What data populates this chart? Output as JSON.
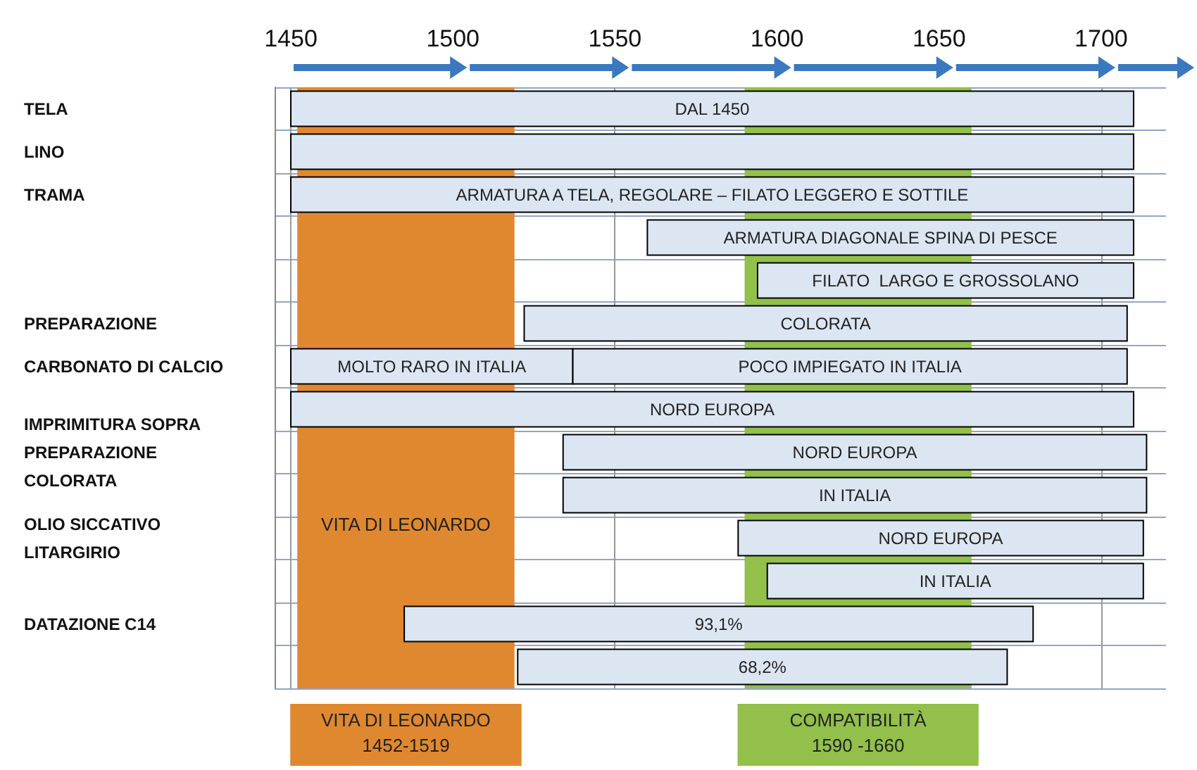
{
  "chart_data": {
    "type": "bar",
    "orientation": "horizontal",
    "categories": [
      "TELA",
      "LINO",
      "TRAMA",
      null,
      null,
      "PREPARAZIONE",
      "CARBONATO DI CALCIO",
      null,
      "IMPRIMITURA SOPRA\nPREPARAZIONE\nCOLORATA",
      null,
      "OLIO SICCATIVO\nLITARGIRIO",
      null,
      "DATAZIONE C14",
      null
    ],
    "series": [
      {
        "name": "DAL 1450",
        "color": "#dce6f2",
        "base": [
          1450,
          null,
          null,
          null,
          null,
          null,
          null,
          null,
          null,
          null,
          null,
          null,
          null,
          null
        ],
        "values": [
          260,
          null,
          null,
          null,
          null,
          null,
          null,
          null,
          null,
          null,
          null,
          null,
          null,
          null
        ]
      },
      {
        "color": "#dce6f2",
        "base": [
          null,
          1450,
          null,
          null,
          null,
          null,
          null,
          null,
          null,
          null,
          null,
          null,
          null,
          null
        ],
        "values": [
          null,
          260,
          null,
          null,
          null,
          null,
          null,
          null,
          null,
          null,
          null,
          null,
          null,
          null
        ]
      },
      {
        "name": "ARMATURA A TELA, REGOLARE – FILATO LEGGERO E SOTTILE",
        "color": "#dce6f2",
        "base": [
          null,
          null,
          1450,
          null,
          null,
          null,
          null,
          null,
          null,
          null,
          null,
          null,
          null,
          null
        ],
        "values": [
          null,
          null,
          260,
          null,
          null,
          null,
          null,
          null,
          null,
          null,
          null,
          null,
          null,
          null
        ]
      },
      {
        "name": "ARMATURA DIAGONALE SPINA DI PESCE",
        "color": "#dce6f2",
        "base": [
          null,
          null,
          null,
          1560,
          null,
          null,
          null,
          null,
          null,
          null,
          null,
          null,
          null,
          null
        ],
        "values": [
          null,
          null,
          null,
          150,
          null,
          null,
          null,
          null,
          null,
          null,
          null,
          null,
          null,
          null
        ]
      },
      {
        "name": "FILATO  LARGO E GROSSOLANO",
        "color": "#dce6f2",
        "base": [
          null,
          null,
          null,
          null,
          1594,
          null,
          null,
          null,
          null,
          null,
          null,
          null,
          null,
          null
        ],
        "values": [
          null,
          null,
          null,
          null,
          116,
          null,
          null,
          null,
          null,
          null,
          null,
          null,
          null,
          null
        ]
      },
      {
        "name": "COLORATA",
        "color": "#dce6f2",
        "base": [
          null,
          null,
          null,
          null,
          null,
          1522,
          null,
          null,
          null,
          null,
          null,
          null,
          null,
          null
        ],
        "values": [
          null,
          null,
          null,
          null,
          null,
          186,
          null,
          null,
          null,
          null,
          null,
          null,
          null,
          null
        ]
      },
      {
        "name": "MOLTO RARO IN ITALIA",
        "color": "#dce6f2",
        "base": [
          null,
          null,
          null,
          null,
          null,
          null,
          1450,
          null,
          null,
          null,
          null,
          null,
          null,
          null
        ],
        "values": [
          null,
          null,
          null,
          null,
          null,
          null,
          87,
          null,
          null,
          null,
          null,
          null,
          null,
          null
        ]
      },
      {
        "name": "POCO IMPIEGATO IN ITALIA",
        "color": "#dce6f2",
        "base": [
          null,
          null,
          null,
          null,
          null,
          null,
          1537,
          null,
          null,
          null,
          null,
          null,
          null,
          null
        ],
        "values": [
          null,
          null,
          null,
          null,
          null,
          null,
          171,
          null,
          null,
          null,
          null,
          null,
          null,
          null
        ]
      },
      {
        "name": "NORD EUROPA",
        "color": "#dce6f2",
        "base": [
          null,
          null,
          null,
          null,
          null,
          null,
          null,
          1450,
          null,
          null,
          null,
          null,
          null,
          null
        ],
        "values": [
          null,
          null,
          null,
          null,
          null,
          null,
          null,
          260,
          null,
          null,
          null,
          null,
          null,
          null
        ]
      },
      {
        "name": "NORD EUROPA",
        "color": "#dce6f2",
        "base": [
          null,
          null,
          null,
          null,
          null,
          null,
          null,
          null,
          1534,
          null,
          null,
          null,
          null,
          null
        ],
        "values": [
          null,
          null,
          null,
          null,
          null,
          null,
          null,
          null,
          180,
          null,
          null,
          null,
          null,
          null
        ]
      },
      {
        "name": "IN ITALIA",
        "color": "#dce6f2",
        "base": [
          null,
          null,
          null,
          null,
          null,
          null,
          null,
          null,
          null,
          1534,
          null,
          null,
          null,
          null
        ],
        "values": [
          null,
          null,
          null,
          null,
          null,
          null,
          null,
          null,
          null,
          180,
          null,
          null,
          null,
          null
        ]
      },
      {
        "name": "NORD EUROPA",
        "color": "#dce6f2",
        "base": [
          null,
          null,
          null,
          null,
          null,
          null,
          null,
          null,
          null,
          null,
          1588,
          null,
          null,
          null
        ],
        "values": [
          null,
          null,
          null,
          null,
          null,
          null,
          null,
          null,
          null,
          null,
          125,
          null,
          null,
          null
        ]
      },
      {
        "name": "IN ITALIA",
        "color": "#dce6f2",
        "base": [
          null,
          null,
          null,
          null,
          null,
          null,
          null,
          null,
          null,
          null,
          null,
          1597,
          null,
          null
        ],
        "values": [
          null,
          null,
          null,
          null,
          null,
          null,
          null,
          null,
          null,
          null,
          null,
          116,
          null,
          null
        ]
      },
      {
        "name": "93,1%",
        "color": "#dce6f2",
        "base": [
          null,
          null,
          null,
          null,
          null,
          null,
          null,
          null,
          null,
          null,
          null,
          null,
          1485,
          null
        ],
        "values": [
          null,
          null,
          null,
          null,
          null,
          null,
          null,
          null,
          null,
          null,
          null,
          null,
          194,
          null
        ]
      },
      {
        "name": "68,2%",
        "color": "#dce6f2",
        "base": [
          null,
          null,
          null,
          null,
          null,
          null,
          null,
          null,
          null,
          null,
          null,
          null,
          null,
          1520
        ],
        "values": [
          null,
          null,
          null,
          null,
          null,
          null,
          null,
          null,
          null,
          null,
          null,
          null,
          null,
          151
        ]
      }
    ],
    "xlim": [
      1445,
      1720
    ],
    "xticks": [
      1450,
      1500,
      1550,
      1600,
      1650,
      1700
    ],
    "grid": true,
    "bands": [
      {
        "axis": "x",
        "from": 1452,
        "to": 1519,
        "label": "VITA DI LEONARDO",
        "color": "#e0882f"
      },
      {
        "axis": "x",
        "from": 1590,
        "to": 1660,
        "color": "#92c04a"
      }
    ],
    "annotations": [
      "VITA DI LEONARDO\n1452-1519",
      "COMPATIBILITÀ\n1590 -1660"
    ]
  }
}
